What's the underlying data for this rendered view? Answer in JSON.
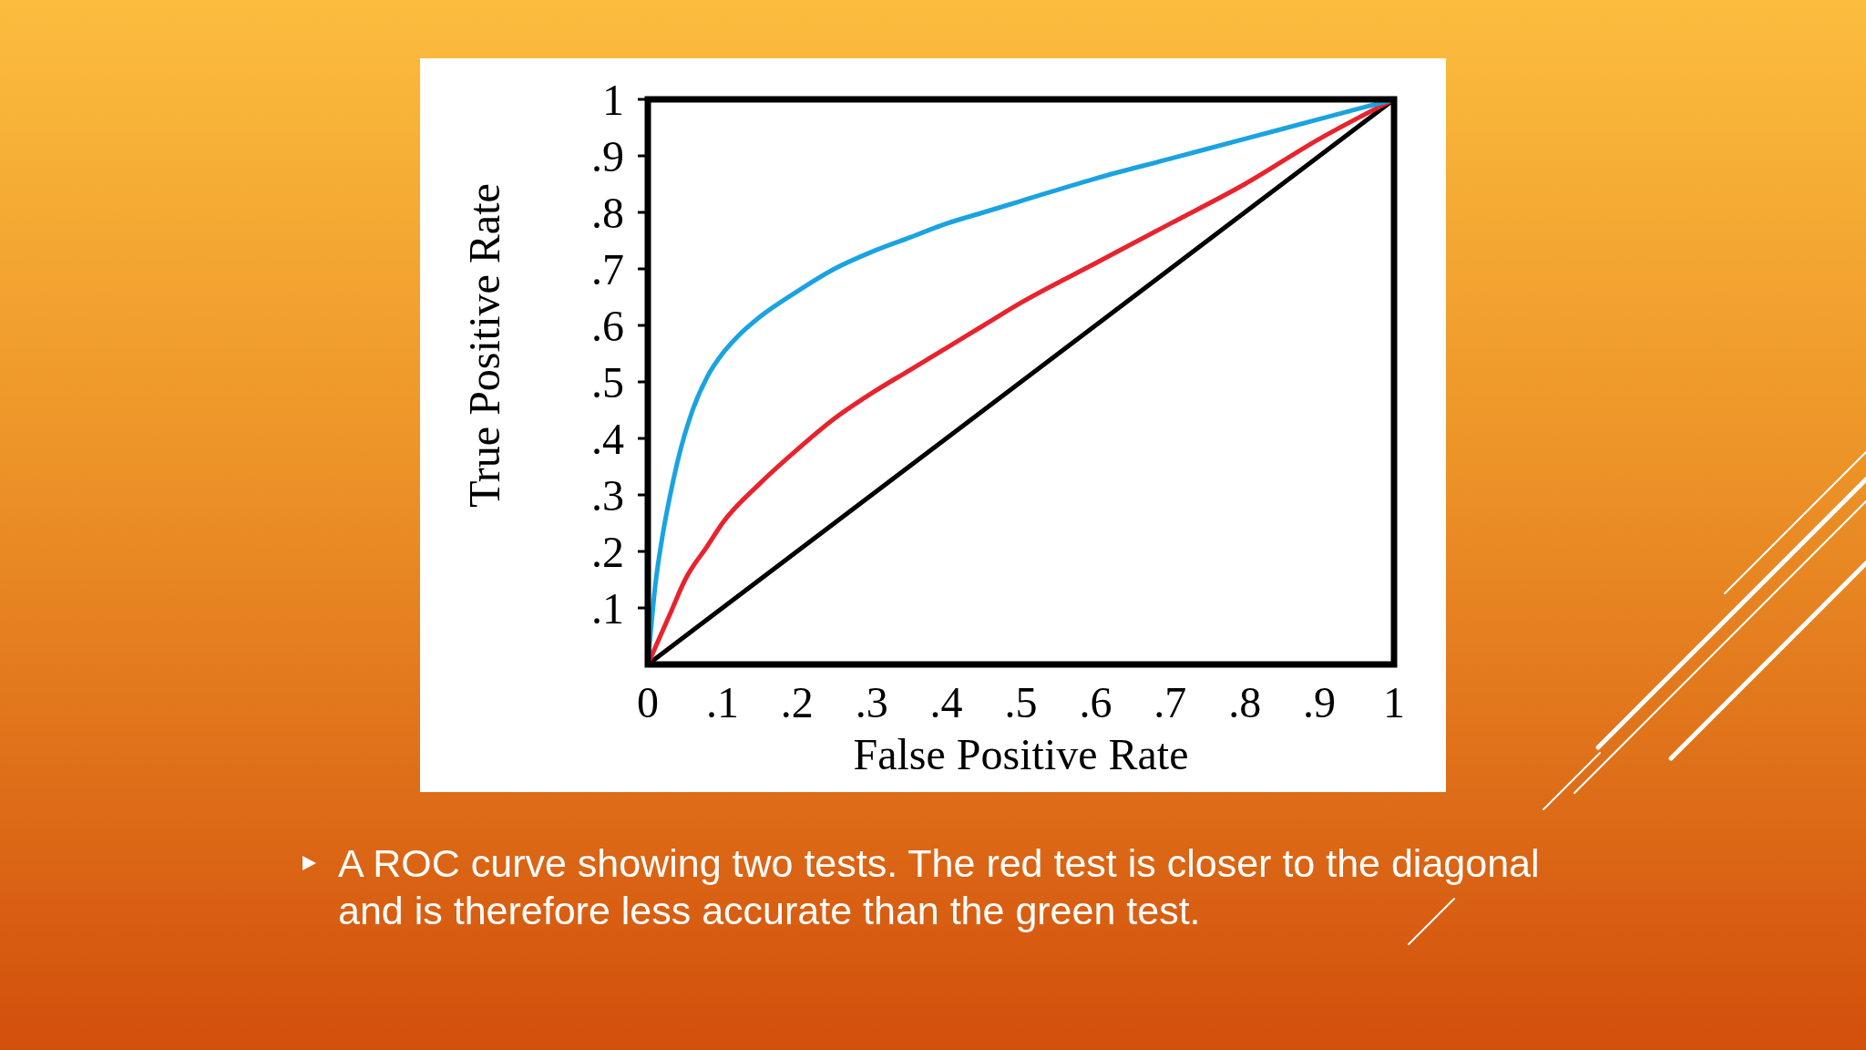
{
  "chart_data": {
    "type": "line",
    "xlabel": "False Positive Rate",
    "ylabel": "True Positive Rate",
    "xlim": [
      0,
      1
    ],
    "ylim": [
      0,
      1
    ],
    "xticks": [
      {
        "value": 0,
        "label": "0"
      },
      {
        "value": 0.1,
        "label": ".1"
      },
      {
        "value": 0.2,
        "label": ".2"
      },
      {
        "value": 0.3,
        "label": ".3"
      },
      {
        "value": 0.4,
        "label": ".4"
      },
      {
        "value": 0.5,
        "label": ".5"
      },
      {
        "value": 0.6,
        "label": ".6"
      },
      {
        "value": 0.7,
        "label": ".7"
      },
      {
        "value": 0.8,
        "label": ".8"
      },
      {
        "value": 0.9,
        "label": ".9"
      },
      {
        "value": 1,
        "label": "1"
      }
    ],
    "yticks": [
      {
        "value": 0.1,
        "label": ".1"
      },
      {
        "value": 0.2,
        "label": ".2"
      },
      {
        "value": 0.3,
        "label": ".3"
      },
      {
        "value": 0.4,
        "label": ".4"
      },
      {
        "value": 0.5,
        "label": ".5"
      },
      {
        "value": 0.6,
        "label": ".6"
      },
      {
        "value": 0.7,
        "label": ".7"
      },
      {
        "value": 0.8,
        "label": ".8"
      },
      {
        "value": 0.9,
        "label": ".9"
      },
      {
        "value": 1,
        "label": "1"
      }
    ],
    "line_style": "solid",
    "series": [
      {
        "color": "#000000",
        "x": [
          0,
          1
        ],
        "values": [
          0,
          1
        ]
      },
      {
        "color": "#e8232e",
        "x": [
          0,
          0.03,
          0.05,
          0.08,
          0.1,
          0.15,
          0.2,
          0.25,
          0.3,
          0.35,
          0.4,
          0.45,
          0.5,
          0.6,
          0.7,
          0.8,
          0.9,
          1
        ],
        "values": [
          0,
          0.09,
          0.15,
          0.21,
          0.25,
          0.32,
          0.38,
          0.435,
          0.48,
          0.52,
          0.56,
          0.6,
          0.64,
          0.71,
          0.78,
          0.85,
          0.93,
          1
        ]
      },
      {
        "color": "#1aa3e0",
        "x": [
          0,
          0.01,
          0.02,
          0.03,
          0.04,
          0.06,
          0.08,
          0.1,
          0.12,
          0.15,
          0.2,
          0.25,
          0.3,
          0.35,
          0.4,
          0.45,
          0.5,
          0.6,
          0.7,
          0.8,
          0.9,
          1
        ],
        "values": [
          0,
          0.14,
          0.23,
          0.3,
          0.36,
          0.45,
          0.51,
          0.55,
          0.58,
          0.615,
          0.66,
          0.7,
          0.73,
          0.755,
          0.78,
          0.8,
          0.82,
          0.86,
          0.895,
          0.93,
          0.965,
          1
        ]
      }
    ],
    "annotations": [
      "A ROC curve showing two tests. The red test is closer to the diagonal and is therefore less accurate than the green test."
    ]
  }
}
